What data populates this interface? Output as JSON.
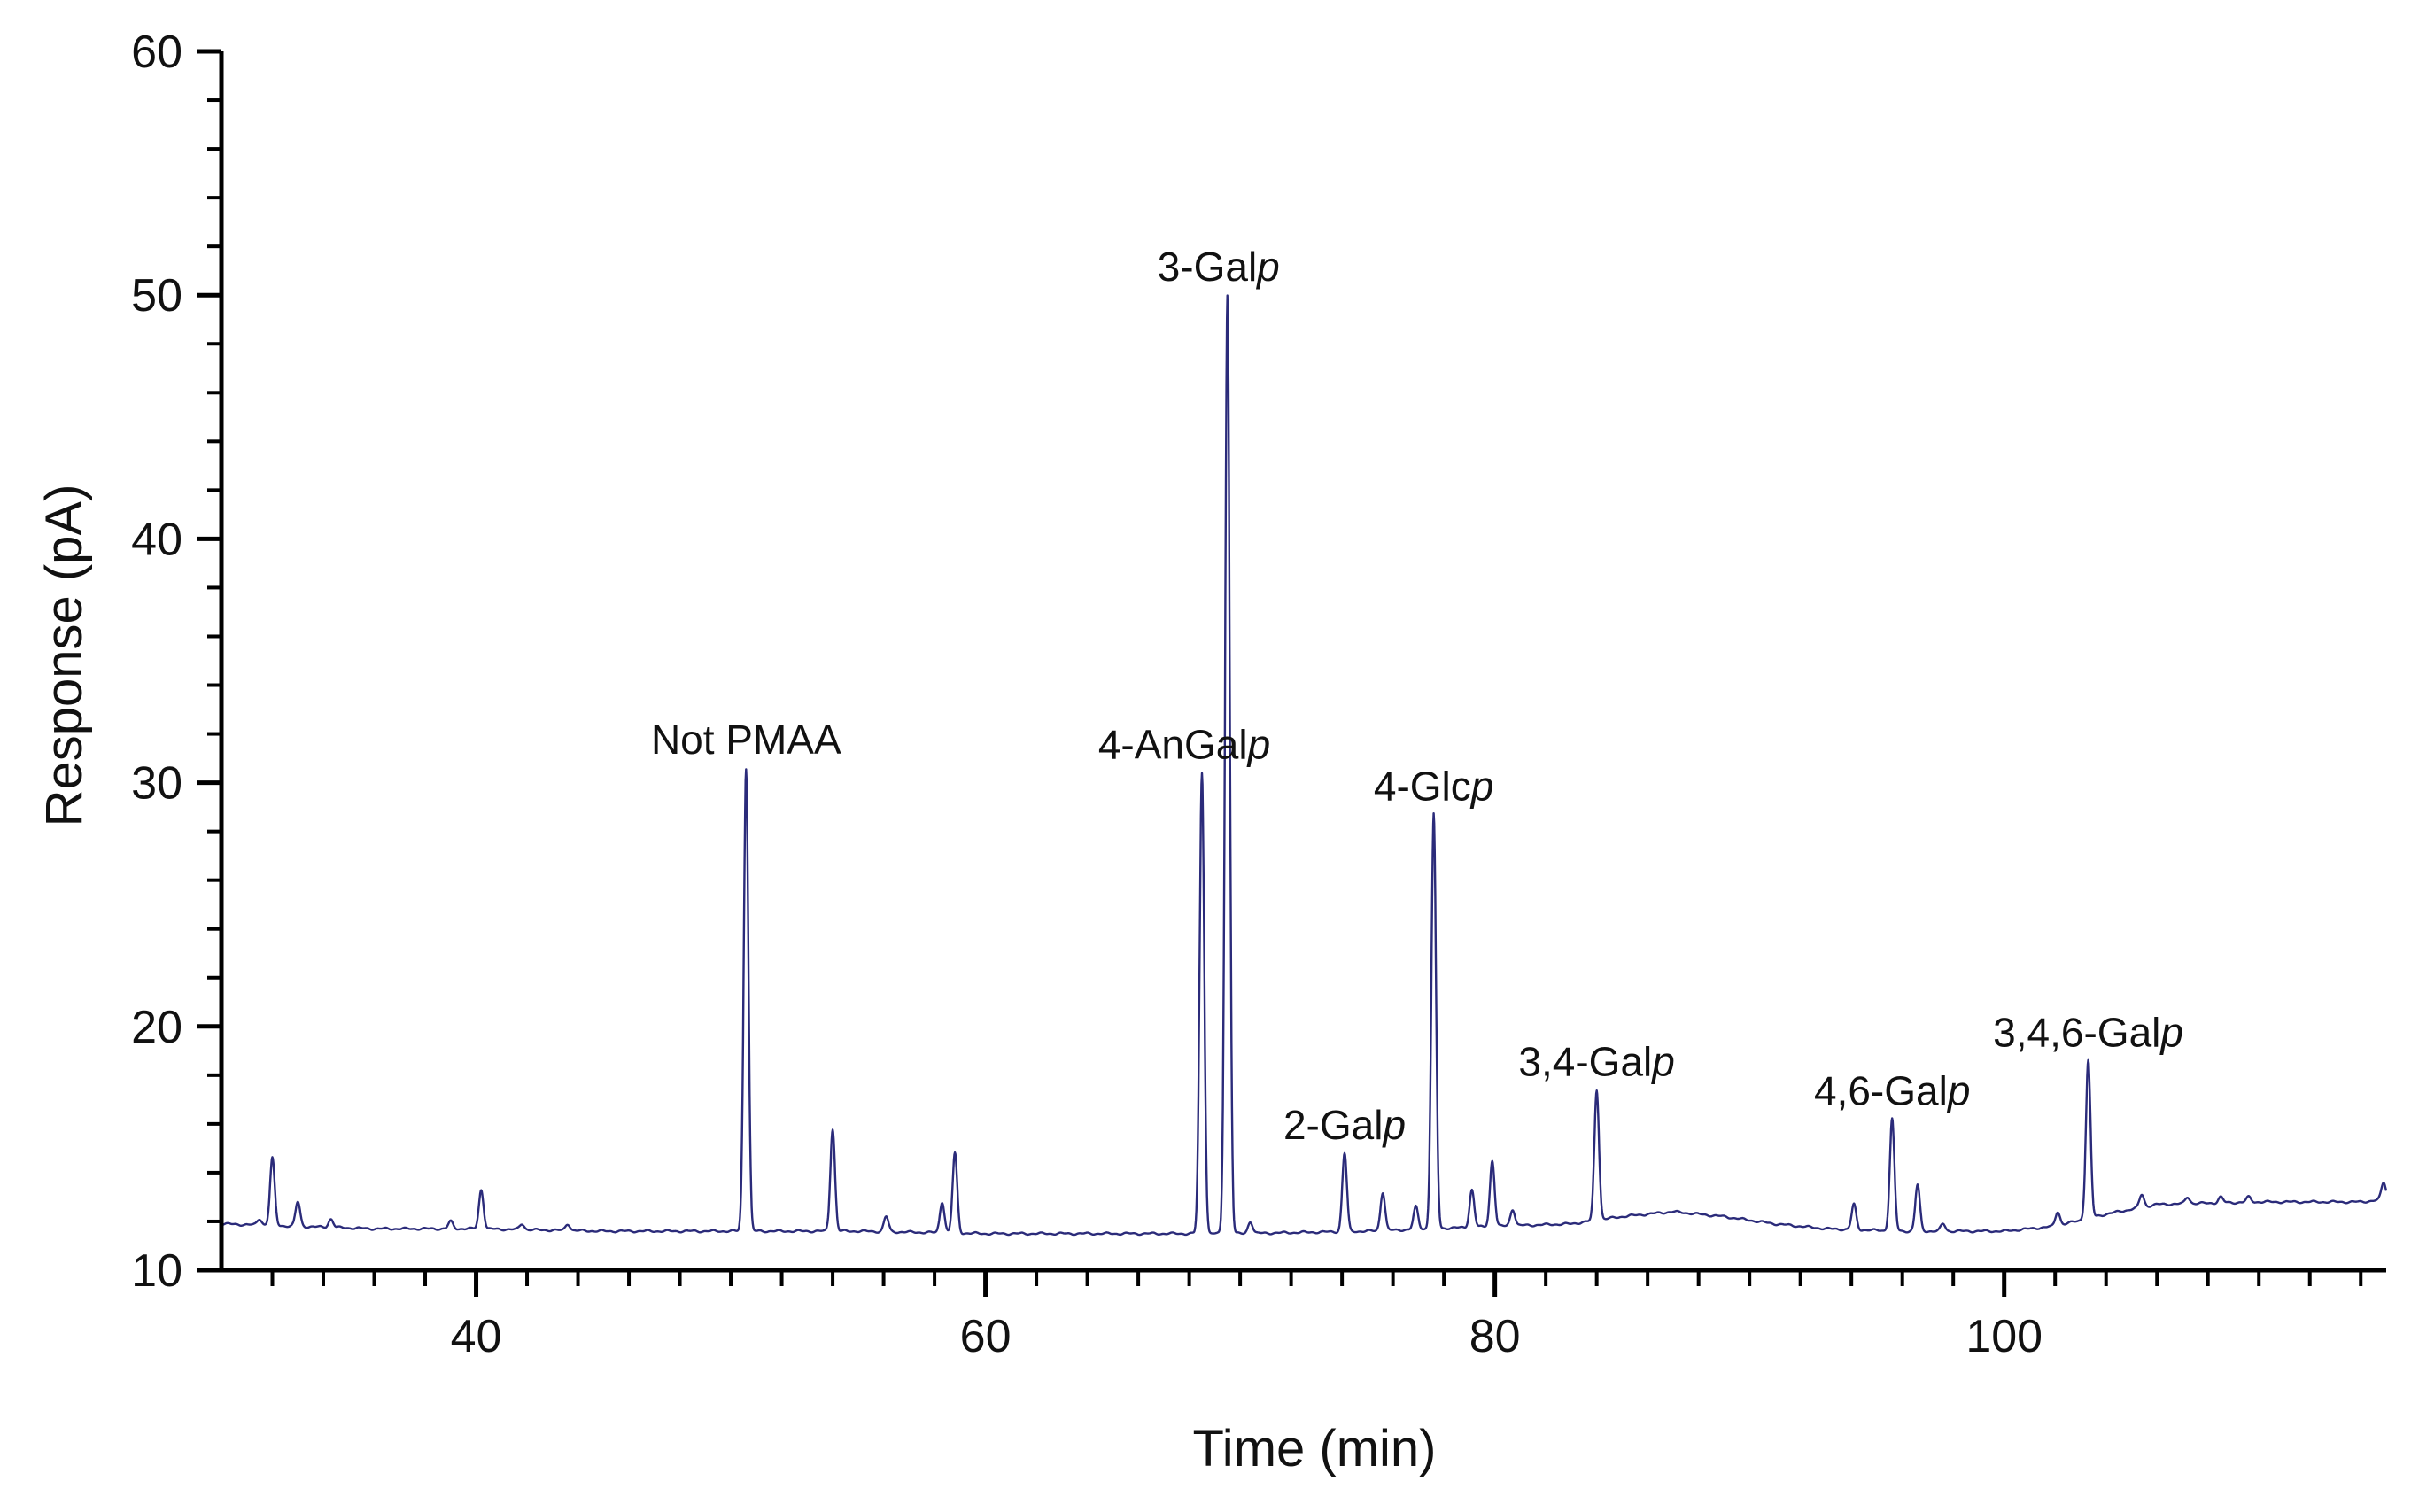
{
  "chart_data": {
    "type": "line",
    "title": "",
    "xlabel": "Time (min)",
    "ylabel": "Response (pA)",
    "xlim": [
      30,
      115
    ],
    "ylim": [
      10,
      60
    ],
    "x_ticks": [
      40,
      60,
      80,
      100
    ],
    "x_minor_step": 2,
    "y_ticks": [
      10,
      20,
      30,
      40,
      50,
      60
    ],
    "y_minor_step": 2,
    "grid": false,
    "legend": "none",
    "line_color": "#2b2b7a",
    "baseline": [
      [
        30,
        11.9
      ],
      [
        33,
        11.8
      ],
      [
        36,
        11.7
      ],
      [
        40,
        11.7
      ],
      [
        45,
        11.6
      ],
      [
        50,
        11.6
      ],
      [
        55,
        11.6
      ],
      [
        60,
        11.5
      ],
      [
        65,
        11.5
      ],
      [
        70,
        11.5
      ],
      [
        75,
        11.6
      ],
      [
        80,
        11.8
      ],
      [
        83,
        11.9
      ],
      [
        85,
        12.2
      ],
      [
        87,
        12.4
      ],
      [
        89,
        12.2
      ],
      [
        91,
        11.9
      ],
      [
        93,
        11.7
      ],
      [
        96,
        11.6
      ],
      [
        100,
        11.6
      ],
      [
        102,
        11.8
      ],
      [
        104,
        12.3
      ],
      [
        106,
        12.7
      ],
      [
        110,
        12.8
      ],
      [
        114,
        12.8
      ],
      [
        115,
        12.9
      ]
    ],
    "peaks": [
      {
        "x": 31.5,
        "y": 12.1
      },
      {
        "x": 32.0,
        "y": 14.6
      },
      {
        "x": 33.0,
        "y": 12.8
      },
      {
        "x": 34.3,
        "y": 12.1
      },
      {
        "x": 39.0,
        "y": 12.0
      },
      {
        "x": 40.2,
        "y": 13.3
      },
      {
        "x": 41.8,
        "y": 11.9
      },
      {
        "x": 43.6,
        "y": 11.9
      },
      {
        "x": 50.6,
        "y": 30.6
      },
      {
        "x": 54.0,
        "y": 15.8
      },
      {
        "x": 56.1,
        "y": 12.2
      },
      {
        "x": 58.3,
        "y": 12.8
      },
      {
        "x": 58.8,
        "y": 14.8
      },
      {
        "x": 68.5,
        "y": 30.4
      },
      {
        "x": 69.5,
        "y": 50.0
      },
      {
        "x": 70.4,
        "y": 12.0
      },
      {
        "x": 74.1,
        "y": 14.8
      },
      {
        "x": 75.6,
        "y": 13.2
      },
      {
        "x": 76.9,
        "y": 12.6
      },
      {
        "x": 77.6,
        "y": 28.7
      },
      {
        "x": 79.1,
        "y": 13.3
      },
      {
        "x": 79.9,
        "y": 14.5
      },
      {
        "x": 80.7,
        "y": 12.5
      },
      {
        "x": 84.0,
        "y": 17.4
      },
      {
        "x": 94.1,
        "y": 12.7
      },
      {
        "x": 95.6,
        "y": 16.2
      },
      {
        "x": 96.6,
        "y": 13.5
      },
      {
        "x": 97.6,
        "y": 11.9
      },
      {
        "x": 102.1,
        "y": 12.4
      },
      {
        "x": 103.3,
        "y": 18.6
      },
      {
        "x": 105.4,
        "y": 13.1
      },
      {
        "x": 107.2,
        "y": 13.0
      },
      {
        "x": 108.5,
        "y": 13.0
      },
      {
        "x": 109.6,
        "y": 13.0
      },
      {
        "x": 114.9,
        "y": 13.6
      }
    ],
    "annotations": [
      {
        "text": "Not PMAA",
        "x": 50.6,
        "y": 30.6
      },
      {
        "text": "4-AnGal",
        "italic": "p",
        "x": 68.5,
        "y": 30.4
      },
      {
        "text": "3-Gal",
        "italic": "p",
        "x": 69.5,
        "y": 50.0
      },
      {
        "text": "4-Glc",
        "italic": "p",
        "x": 77.6,
        "y": 28.7
      },
      {
        "text": "2-Gal",
        "italic": "p",
        "x": 74.1,
        "y": 14.8
      },
      {
        "text": "3,4-Gal",
        "italic": "p",
        "x": 84.0,
        "y": 17.4
      },
      {
        "text": "4,6-Gal",
        "italic": "p",
        "x": 95.6,
        "y": 16.2
      },
      {
        "text": "3,4,6-Gal",
        "italic": "p",
        "x": 103.3,
        "y": 18.6
      }
    ]
  }
}
